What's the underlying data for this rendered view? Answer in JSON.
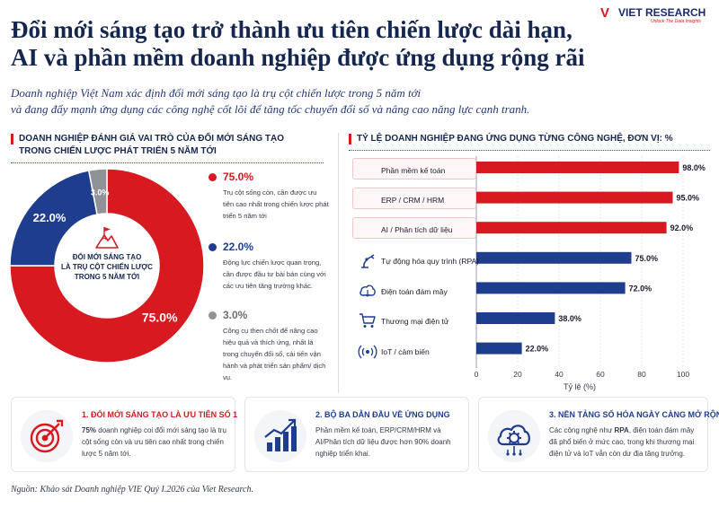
{
  "brand": {
    "logo_mark": "V",
    "name": "VIET RESEARCH",
    "tagline": "Unlock The Data Insights"
  },
  "title_line1": "Đổi mới sáng tạo trở thành ưu tiên chiến lược dài hạn,",
  "title_line2": "AI và phần mềm doanh nghiệp được ứng dụng rộng rãi",
  "subtitle_line1": "Doanh nghiệp Việt Nam xác định đổi mới sáng tạo là trụ cột chiến lược trong 5 năm tới",
  "subtitle_line2": "và đang đẩy mạnh ứng dụng các công nghệ cốt lõi để tăng tốc chuyển đổi số và nâng cao năng lực cạnh tranh.",
  "colors": {
    "red": "#d71920",
    "navy": "#1f3d8f",
    "gray": "#8f9297",
    "title": "#15264f"
  },
  "chart_data": [
    {
      "type": "pie",
      "title": "DOANH NGHIỆP ĐÁNH GIÁ VAI TRÒ CỦA ĐỔI MỚI SÁNG TẠO TRONG CHIẾN LƯỢC PHÁT TRIỂN 5 NĂM TỚI",
      "title_line1": "DOANH NGHIỆP ĐÁNH GIÁ VAI TRÒ CỦA ĐỔI MỚI SÁNG TẠO",
      "title_line2": "TRONG CHIẾN LƯỢC PHÁT TRIỂN 5 NĂM TỚI",
      "center_label_line1": "ĐỔI MỚI SÁNG TẠO",
      "center_label_line2": "LÀ TRỤ CỘT CHIẾN LƯỢC",
      "center_label_line3": "TRONG 5 NĂM TỚI",
      "slices": [
        {
          "value": 75.0,
          "label": "75.0%",
          "color": "#d71920",
          "description": "Trụ cột sống còn, cần được ưu tiên cao nhất trong chiến lược phát triển 5 năm tới"
        },
        {
          "value": 22.0,
          "label": "22.0%",
          "color": "#1f3d8f",
          "description": "Động lực chiến lược quan trọng, cần được đầu tư bài bản cùng với các ưu tiên tăng trưởng khác."
        },
        {
          "value": 3.0,
          "label": "3.0%",
          "color": "#8f9297",
          "description": "Công cụ then chốt để nâng cao hiệu quả và thích ứng, nhất là trong chuyển đổi số, cải tiến vận hành và phát triển sản phẩm/ dịch vụ."
        }
      ]
    },
    {
      "type": "bar",
      "orientation": "horizontal",
      "title": "TỶ LỆ DOANH NGHIỆP ĐANG ỨNG DỤNG TỪNG CÔNG NGHỆ, ĐƠN VỊ: %",
      "xlabel": "Tỷ lệ (%)",
      "xlim": [
        0,
        100
      ],
      "xticks": [
        0,
        20,
        40,
        60,
        80,
        100
      ],
      "bars": [
        {
          "label": "Phần mềm kế toán",
          "value": 98.0,
          "value_label": "98.0%",
          "color": "#d71920",
          "icon": "accounting-software-icon"
        },
        {
          "label": "ERP / CRM / HRM",
          "value": 95.0,
          "value_label": "95.0%",
          "color": "#d71920",
          "icon": "erp-crm-hrm-icon"
        },
        {
          "label": "AI / Phân tích dữ liệu",
          "value": 92.0,
          "value_label": "92.0%",
          "color": "#d71920",
          "icon": "ai-brain-icon"
        },
        {
          "label": "Tự động hóa quy trình (RPA)",
          "value": 75.0,
          "value_label": "75.0%",
          "color": "#1f3d8f",
          "icon": "robot-arm-icon"
        },
        {
          "label": "Điện toán đám mây",
          "value": 72.0,
          "value_label": "72.0%",
          "color": "#1f3d8f",
          "icon": "cloud-icon"
        },
        {
          "label": "Thương mại điện tử",
          "value": 38.0,
          "value_label": "38.0%",
          "color": "#1f3d8f",
          "icon": "shopping-cart-icon"
        },
        {
          "label": "IoT / cảm biến",
          "value": 22.0,
          "value_label": "22.0%",
          "color": "#1f3d8f",
          "icon": "iot-sensor-icon"
        }
      ]
    }
  ],
  "insights": [
    {
      "title": "1. ĐỔI MỚI SÁNG TẠO LÀ ƯU TIÊN SỐ 1",
      "bold_lead": "75%",
      "text": " doanh nghiệp coi đổi mới sáng tạo là trụ cột sống còn và ưu tiên cao nhất trong chiến lược 5 năm tới.",
      "icon": "target-arrow-icon",
      "color": "#d71920"
    },
    {
      "title": "2. BỘ BA DẪN ĐẦU VỀ ỨNG DỤNG",
      "text": "Phần mềm kế toán, ERP/CRM/HRM và AI/Phân tích dữ liệu được hơn 90% doanh nghiệp triển khai.",
      "icon": "growth-chart-icon",
      "color": "#1f3d8f"
    },
    {
      "title": "3. NỀN TẢNG SỐ HÓA NGÀY CÀNG MỞ RỘNG",
      "text_before": "Các công nghệ như ",
      "bold_mid": "RPA",
      "text_after": ", điện toán đám mây đã phổ biến ở mức cao, trong khi thương mại điện tử và IoT vẫn còn dư địa tăng trưởng.",
      "icon": "cloud-gear-icon",
      "color": "#1f3d8f"
    }
  ],
  "source": "Nguồn: Khảo sát Doanh nghiệp VIE Quý I.2026 của Viet Research."
}
